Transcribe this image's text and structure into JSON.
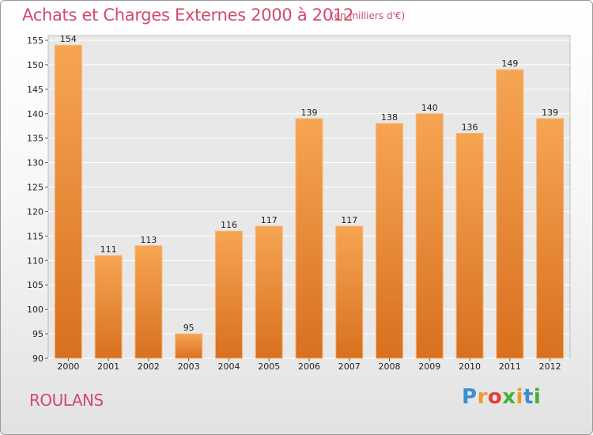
{
  "header": {
    "title": "Achats et Charges Externes 2000 à 2012",
    "subtitle": "(en milliers d'€)"
  },
  "footer": {
    "commune": "ROULANS",
    "logo_letters": [
      "P",
      "r",
      "o",
      "x",
      "i",
      "t",
      "i"
    ]
  },
  "chart_data": {
    "type": "bar",
    "title": "Achats et Charges Externes 2000 à 2012",
    "subtitle": "(en milliers d'€)",
    "categories": [
      "2000",
      "2001",
      "2002",
      "2003",
      "2004",
      "2005",
      "2006",
      "2007",
      "2008",
      "2009",
      "2010",
      "2011",
      "2012"
    ],
    "values": [
      154,
      111,
      113,
      95,
      116,
      117,
      139,
      117,
      138,
      140,
      136,
      149,
      139
    ],
    "ylim": [
      90,
      155
    ],
    "yticks": [
      90,
      95,
      100,
      105,
      110,
      115,
      120,
      125,
      130,
      135,
      140,
      145,
      150,
      155
    ],
    "grid": true,
    "bar_color": "#f0913a"
  }
}
